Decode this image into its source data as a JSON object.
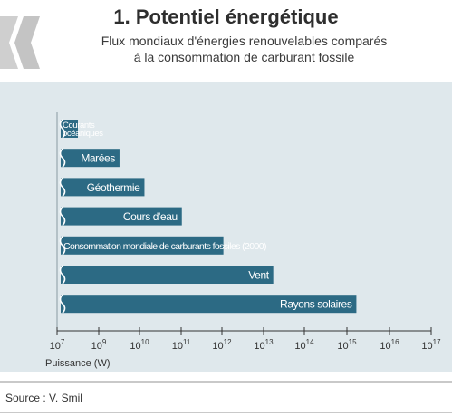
{
  "title": "1. Potentiel énergétique",
  "subtitle_line1": "Flux mondiaux d'énergies renouvelables comparés",
  "subtitle_line2": "à la consommation de carburant fossile",
  "source": "Source : V. Smil",
  "colors": {
    "bar": "#2c6a84",
    "panel": "#dfe8ec",
    "logo": "#c8c8c8"
  },
  "chart_data": {
    "type": "bar",
    "orientation": "horizontal",
    "xscale": "log",
    "xlabel": "Puissance (W)",
    "xlim_exponent": [
      7,
      17
    ],
    "x_ticks": [
      {
        "base": "10",
        "exp": "7"
      },
      {
        "base": "10",
        "exp": "9"
      },
      {
        "base": "10",
        "exp": "10"
      },
      {
        "base": "10",
        "exp": "11"
      },
      {
        "base": "10",
        "exp": "12"
      },
      {
        "base": "10",
        "exp": "13"
      },
      {
        "base": "10",
        "exp": "14"
      },
      {
        "base": "10",
        "exp": "15"
      },
      {
        "base": "10",
        "exp": "16"
      },
      {
        "base": "10",
        "exp": "17"
      }
    ],
    "bars": [
      {
        "label_line1": "Courants",
        "label_line2": "océaniques",
        "exponent": 8.0,
        "value_w": 100000000.0
      },
      {
        "label_line1": "Marées",
        "label_line2": "",
        "exponent": 9.5,
        "value_w": 3000000000.0
      },
      {
        "label_line1": "Géothermie",
        "label_line2": "",
        "exponent": 10.1,
        "value_w": 13000000000.0
      },
      {
        "label_line1": "Cours d'eau",
        "label_line2": "",
        "exponent": 11.0,
        "value_w": 100000000000.0
      },
      {
        "label_line1": "Consommation mondiale de carburants fossiles (2000)",
        "label_line2": "",
        "exponent": 12.0,
        "value_w": 1000000000000.0
      },
      {
        "label_line1": "Vent",
        "label_line2": "",
        "exponent": 13.2,
        "value_w": 16000000000000.0
      },
      {
        "label_line1": "Rayons solaires",
        "label_line2": "",
        "exponent": 15.2,
        "value_w": 1600000000000000.0
      }
    ]
  }
}
